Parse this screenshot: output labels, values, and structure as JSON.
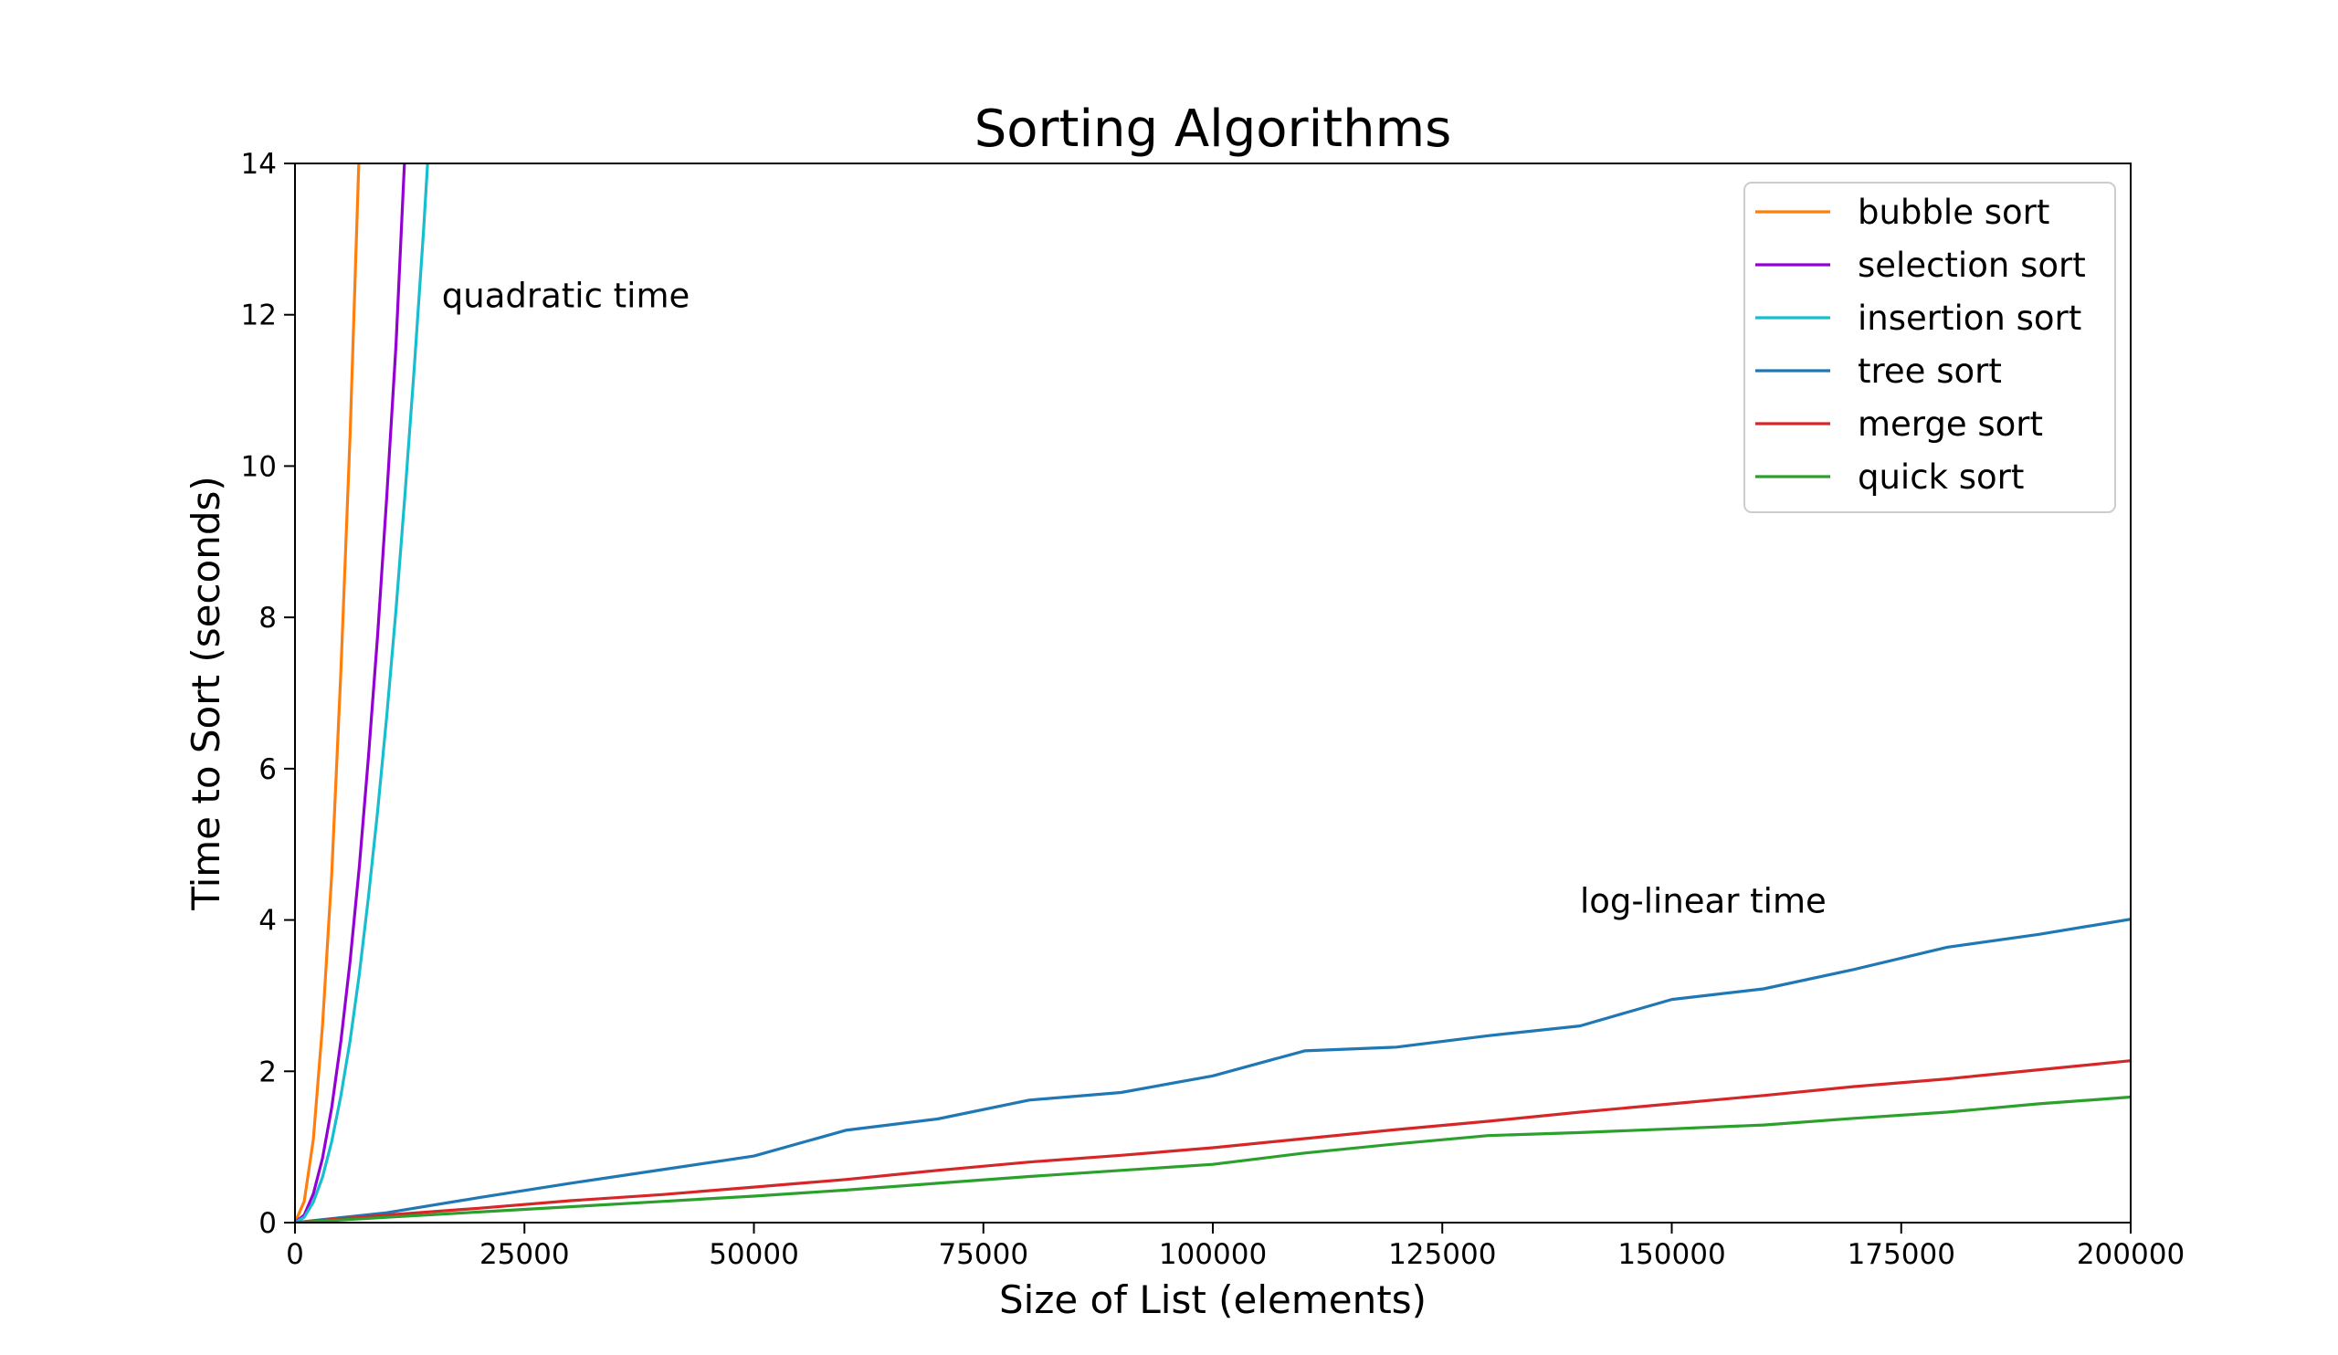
{
  "chart_data": {
    "type": "line",
    "title": "Sorting Algorithms",
    "xlabel": "Size of List (elements)",
    "ylabel": "Time to Sort (seconds)",
    "xlim": [
      0,
      200000
    ],
    "ylim": [
      0,
      14
    ],
    "xticks": [
      "0",
      "25000",
      "50000",
      "75000",
      "100000",
      "125000",
      "150000",
      "175000",
      "200000"
    ],
    "yticks": [
      "0",
      "2",
      "4",
      "6",
      "8",
      "10",
      "12",
      "14"
    ],
    "grid": false,
    "legend_position": "top-right",
    "annotations": [
      {
        "text": "quadratic time",
        "x": 16000,
        "y": 12.1
      },
      {
        "text": "log-linear time",
        "x": 140000,
        "y": 4.1
      }
    ],
    "series": [
      {
        "name": "bubble sort",
        "color": "#ff7f0e",
        "x": [
          0,
          1000,
          2000,
          3000,
          4000,
          5000,
          6000,
          7000
        ],
        "y": [
          0,
          0.28,
          1.1,
          2.6,
          4.6,
          7.3,
          10.4,
          14.2
        ]
      },
      {
        "name": "selection sort",
        "color": "#9400d3",
        "x": [
          0,
          1000,
          2000,
          3000,
          4000,
          5000,
          6000,
          7000,
          8000,
          9000,
          10000,
          11000,
          12000
        ],
        "y": [
          0,
          0.1,
          0.38,
          0.85,
          1.52,
          2.4,
          3.45,
          4.7,
          6.15,
          7.75,
          9.6,
          11.6,
          14.2
        ]
      },
      {
        "name": "insertion sort",
        "color": "#17becf",
        "x": [
          0,
          1000,
          2000,
          3000,
          4000,
          5000,
          6000,
          7000,
          8000,
          9000,
          10000,
          11000,
          12000,
          13000,
          14000,
          14500
        ],
        "y": [
          0,
          0.07,
          0.27,
          0.6,
          1.07,
          1.68,
          2.4,
          3.28,
          4.3,
          5.43,
          6.7,
          8.1,
          9.65,
          11.3,
          13.1,
          14.1
        ]
      },
      {
        "name": "tree sort",
        "color": "#1f77b4",
        "x": [
          0,
          10000,
          20000,
          30000,
          40000,
          50000,
          60000,
          70000,
          80000,
          90000,
          100000,
          110000,
          120000,
          130000,
          140000,
          150000,
          160000,
          170000,
          180000,
          190000,
          200000
        ],
        "y": [
          0,
          0.13,
          0.33,
          0.52,
          0.7,
          0.88,
          1.22,
          1.37,
          1.62,
          1.72,
          1.94,
          2.27,
          2.32,
          2.47,
          2.6,
          2.95,
          3.09,
          3.35,
          3.64,
          3.81,
          4.01
        ]
      },
      {
        "name": "merge sort",
        "color": "#d62728",
        "x": [
          0,
          10000,
          20000,
          30000,
          40000,
          50000,
          60000,
          70000,
          80000,
          90000,
          100000,
          110000,
          120000,
          130000,
          140000,
          150000,
          160000,
          170000,
          180000,
          190000,
          200000
        ],
        "y": [
          0,
          0.1,
          0.19,
          0.29,
          0.37,
          0.47,
          0.57,
          0.69,
          0.8,
          0.89,
          0.99,
          1.11,
          1.23,
          1.34,
          1.46,
          1.57,
          1.68,
          1.8,
          1.9,
          2.02,
          2.14
        ]
      },
      {
        "name": "quick sort",
        "color": "#2ca02c",
        "x": [
          0,
          10000,
          20000,
          30000,
          40000,
          50000,
          60000,
          70000,
          80000,
          90000,
          100000,
          110000,
          120000,
          130000,
          140000,
          150000,
          160000,
          170000,
          180000,
          190000,
          200000
        ],
        "y": [
          0,
          0.07,
          0.14,
          0.21,
          0.28,
          0.35,
          0.43,
          0.52,
          0.61,
          0.69,
          0.77,
          0.92,
          1.04,
          1.15,
          1.19,
          1.24,
          1.29,
          1.38,
          1.46,
          1.57,
          1.66
        ]
      }
    ]
  }
}
